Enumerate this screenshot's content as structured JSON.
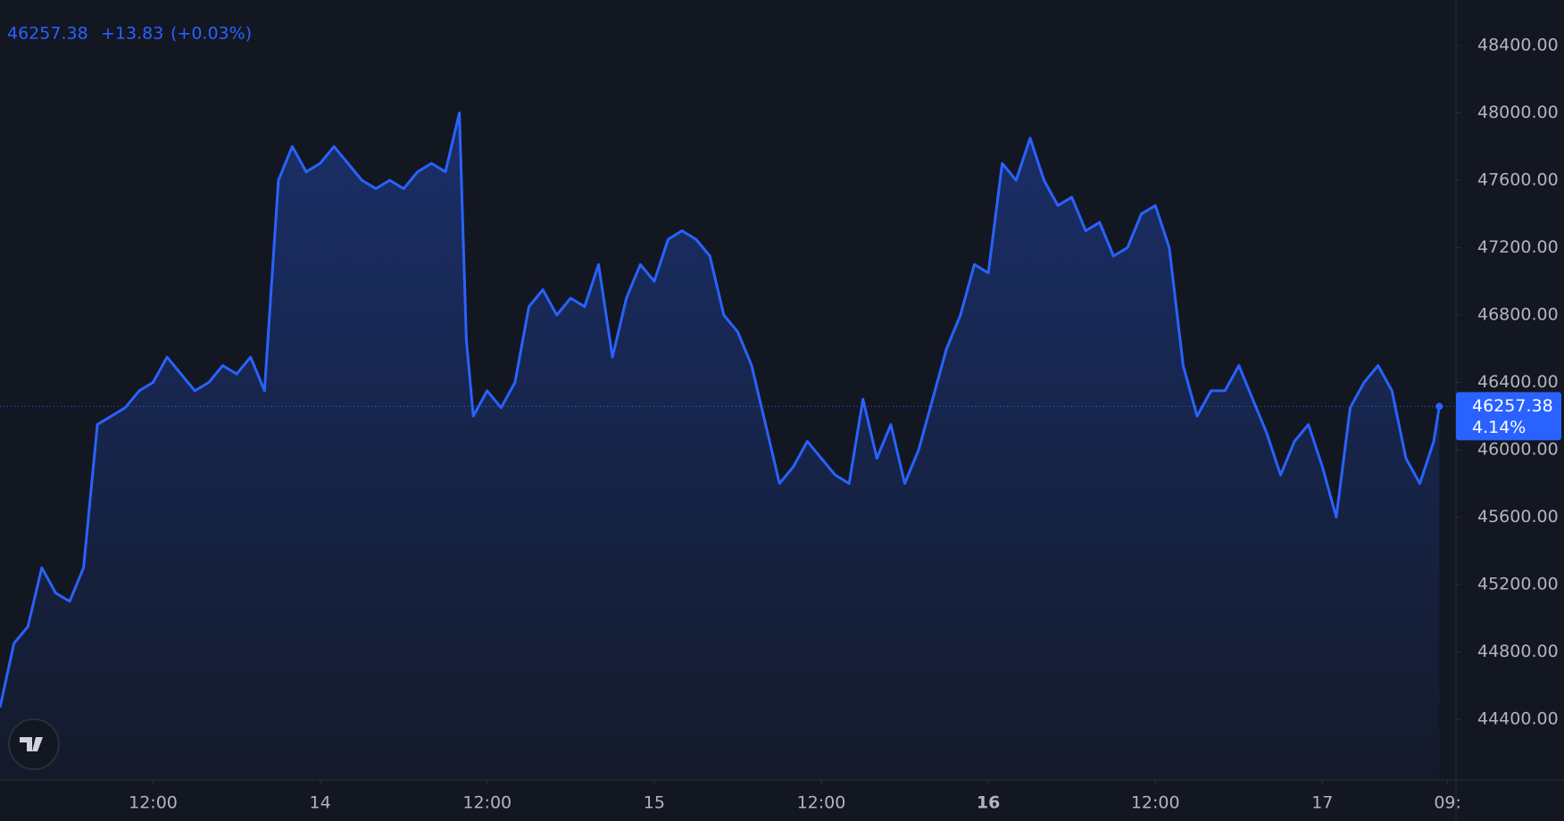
{
  "chart_data": {
    "type": "area",
    "last_price": 46257.38,
    "change": "+13.83",
    "change_percent": "(+0.03%)",
    "percent_label": "4.14%",
    "x": [
      1,
      2,
      3,
      4,
      5,
      6,
      7,
      8,
      9,
      10,
      11,
      12,
      13,
      14,
      15,
      16,
      17,
      18,
      19,
      20,
      21,
      22,
      23,
      24,
      25,
      26,
      27,
      28,
      29,
      30,
      31,
      32,
      33,
      34,
      34.5,
      35,
      36,
      37,
      38,
      39,
      40,
      41,
      42,
      43,
      44,
      45,
      46,
      47,
      48,
      49,
      50,
      51,
      52,
      53,
      54,
      55,
      56,
      57,
      58,
      59,
      60,
      61,
      62,
      63,
      64,
      65,
      66,
      67,
      68,
      69,
      70,
      71,
      72,
      73,
      74,
      75,
      76,
      77,
      78,
      79,
      80,
      81,
      82,
      83,
      84,
      85,
      86,
      87,
      88,
      89,
      90,
      91,
      92,
      93,
      94,
      95,
      96,
      97,
      98,
      99,
      100,
      101,
      102,
      103,
      104,
      104.4
    ],
    "series": [
      {
        "color": "#2962ff",
        "values": [
          44470,
          44850,
          44950,
          45300,
          45150,
          45100,
          45300,
          46150,
          46200,
          46250,
          46350,
          46400,
          46550,
          46450,
          46350,
          46400,
          46500,
          46450,
          46550,
          46350,
          47600,
          47800,
          47650,
          47700,
          47800,
          47700,
          47600,
          47550,
          47600,
          47550,
          47650,
          47700,
          47650,
          48000,
          46650,
          46200,
          46350,
          46250,
          46400,
          46850,
          46950,
          46800,
          46900,
          46850,
          47100,
          46550,
          46900,
          47100,
          47000,
          47250,
          47300,
          47250,
          47150,
          46800,
          46700,
          46500,
          46150,
          45800,
          45900,
          46050,
          45950,
          45850,
          45800,
          46300,
          45950,
          46150,
          45800,
          46000,
          46300,
          46600,
          46800,
          47100,
          47050,
          47700,
          47600,
          47850,
          47600,
          47450,
          47500,
          47300,
          47350,
          47150,
          47200,
          47400,
          47450,
          47200,
          46500,
          46200,
          46350,
          46350,
          46500,
          46300,
          46100,
          45850,
          46050,
          46150,
          45900,
          45600,
          46250,
          46400,
          46500,
          46350,
          45950,
          45800,
          46050,
          46257.38
        ]
      }
    ],
    "xlim": [
      1,
      105.6
    ],
    "ylim": [
      44040,
      48670
    ],
    "xticks": [
      {
        "value": 12,
        "label": "12:00"
      },
      {
        "value": 24,
        "label": "14"
      },
      {
        "value": 36,
        "label": "12:00"
      },
      {
        "value": 48,
        "label": "15"
      },
      {
        "value": 60,
        "label": "12:00"
      },
      {
        "value": 72,
        "label": "16"
      },
      {
        "value": 84,
        "label": "12:00"
      },
      {
        "value": 96,
        "label": "17"
      },
      {
        "value": 105,
        "label": "09:"
      }
    ],
    "yticks": [
      {
        "value": 44400,
        "label": "44400.00"
      },
      {
        "value": 44800,
        "label": "44800.00"
      },
      {
        "value": 45200,
        "label": "45200.00"
      },
      {
        "value": 45600,
        "label": "45600.00"
      },
      {
        "value": 46000,
        "label": "46000.00"
      },
      {
        "value": 46400,
        "label": "46400.00"
      },
      {
        "value": 46800,
        "label": "46800.00"
      },
      {
        "value": 47200,
        "label": "47200.00"
      },
      {
        "value": 47600,
        "label": "47600.00"
      },
      {
        "value": 48000,
        "label": "48000.00"
      },
      {
        "value": 48400,
        "label": "48400.00"
      }
    ]
  }
}
